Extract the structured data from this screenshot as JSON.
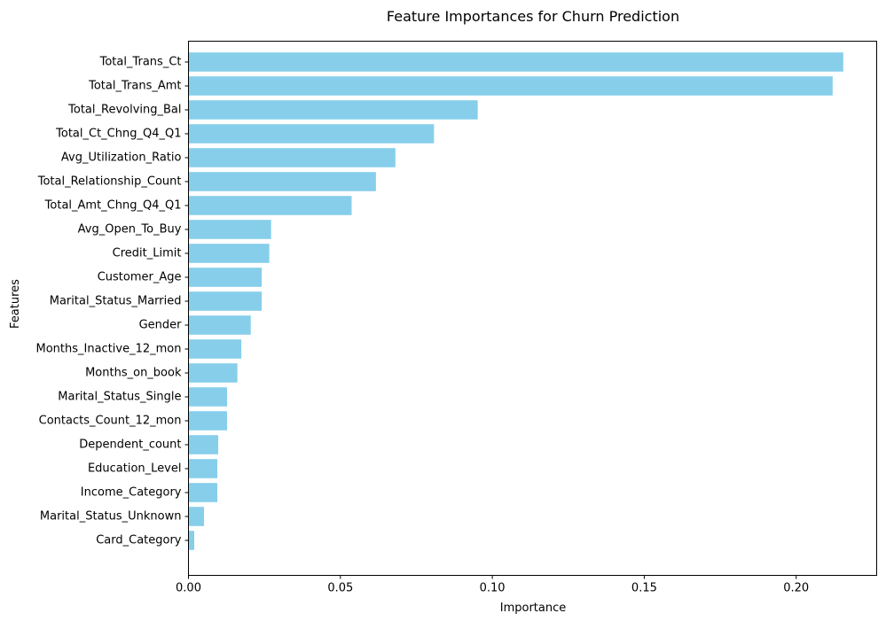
{
  "chart_data": {
    "type": "bar",
    "orientation": "horizontal",
    "title": "Feature Importances for Churn Prediction",
    "xlabel": "Importance",
    "ylabel": "Features",
    "xlim": [
      0,
      0.2265
    ],
    "xticks": [
      0.0,
      0.05,
      0.1,
      0.15,
      0.2
    ],
    "xtick_labels": [
      "0.00",
      "0.05",
      "0.10",
      "0.15",
      "0.20"
    ],
    "grid": false,
    "bar_color": "#87ceeb",
    "categories": [
      "Total_Trans_Ct",
      "Total_Trans_Amt",
      "Total_Revolving_Bal",
      "Total_Ct_Chng_Q4_Q1",
      "Avg_Utilization_Ratio",
      "Total_Relationship_Count",
      "Total_Amt_Chng_Q4_Q1",
      "Avg_Open_To_Buy",
      "Credit_Limit",
      "Customer_Age",
      "Marital_Status_Married",
      "Gender",
      "Months_Inactive_12_mon",
      "Months_on_book",
      "Marital_Status_Single",
      "Contacts_Count_12_mon",
      "Dependent_count",
      "Education_Level",
      "Income_Category",
      "Marital_Status_Unknown",
      "Card_Category"
    ],
    "values": [
      0.2155,
      0.212,
      0.0952,
      0.0808,
      0.0681,
      0.0617,
      0.0537,
      0.0272,
      0.0266,
      0.0241,
      0.0241,
      0.0205,
      0.0174,
      0.0161,
      0.0127,
      0.0127,
      0.0098,
      0.0095,
      0.0095,
      0.0051,
      0.0019
    ]
  }
}
